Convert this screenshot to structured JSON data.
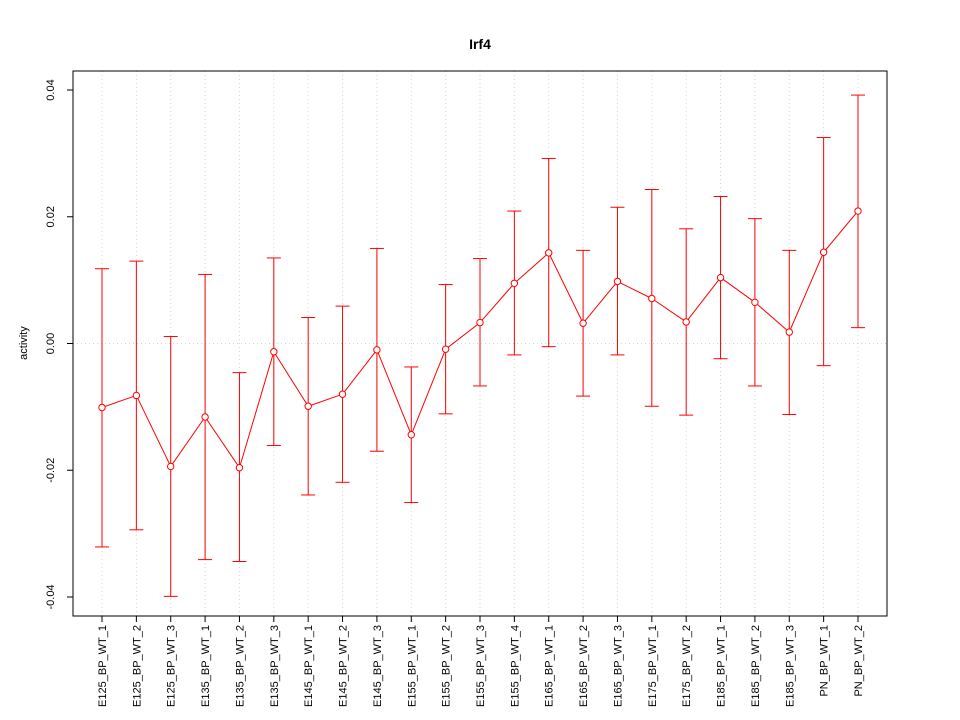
{
  "chart_data": {
    "type": "line",
    "title": "Irf4",
    "xlabel": "",
    "ylabel": "activity",
    "ylim": [
      -0.043,
      0.043
    ],
    "yticks": [
      -0.04,
      -0.02,
      0.0,
      0.02,
      0.04
    ],
    "ytick_labels": [
      "-0.04",
      "-0.02",
      "0.00",
      "0.02",
      "0.04"
    ],
    "grid": true,
    "categories": [
      "E125_BP_WT_1",
      "E125_BP_WT_2",
      "E125_BP_WT_3",
      "E135_BP_WT_1",
      "E135_BP_WT_2",
      "E135_BP_WT_3",
      "E145_BP_WT_1",
      "E145_BP_WT_2",
      "E145_BP_WT_3",
      "E155_BP_WT_1",
      "E155_BP_WT_2",
      "E155_BP_WT_3",
      "E155_BP_WT_4",
      "E165_BP_WT_1",
      "E165_BP_WT_2",
      "E165_BP_WT_3",
      "E175_BP_WT_1",
      "E175_BP_WT_2",
      "E185_BP_WT_1",
      "E185_BP_WT_2",
      "E185_BP_WT_3",
      "PN_BP_WT_1",
      "PN_BP_WT_2"
    ],
    "series": [
      {
        "color": "#ff0000",
        "values": [
          -0.0101,
          -0.0082,
          -0.0194,
          -0.0116,
          -0.0196,
          -0.0013,
          -0.0099,
          -0.008,
          -0.001,
          -0.0144,
          -0.0009,
          0.0033,
          0.0095,
          0.0143,
          0.0032,
          0.0098,
          0.0071,
          0.0034,
          0.0104,
          0.0065,
          0.0018,
          0.0144,
          0.0209
        ],
        "upper": [
          0.0118,
          0.013,
          0.0011,
          0.0109,
          -0.0046,
          0.0135,
          0.0041,
          0.0059,
          0.015,
          -0.0037,
          0.0093,
          0.0134,
          0.0209,
          0.0292,
          0.0147,
          0.0215,
          0.0243,
          0.0181,
          0.0232,
          0.0197,
          0.0147,
          0.0325,
          0.0392
        ],
        "lower": [
          -0.0321,
          -0.0294,
          -0.0399,
          -0.0341,
          -0.0344,
          -0.0161,
          -0.0239,
          -0.0219,
          -0.017,
          -0.0251,
          -0.0111,
          -0.0067,
          -0.0018,
          -0.0005,
          -0.0083,
          -0.0018,
          -0.0099,
          -0.0113,
          -0.0024,
          -0.0067,
          -0.0112,
          -0.0035,
          0.0025
        ]
      }
    ]
  }
}
